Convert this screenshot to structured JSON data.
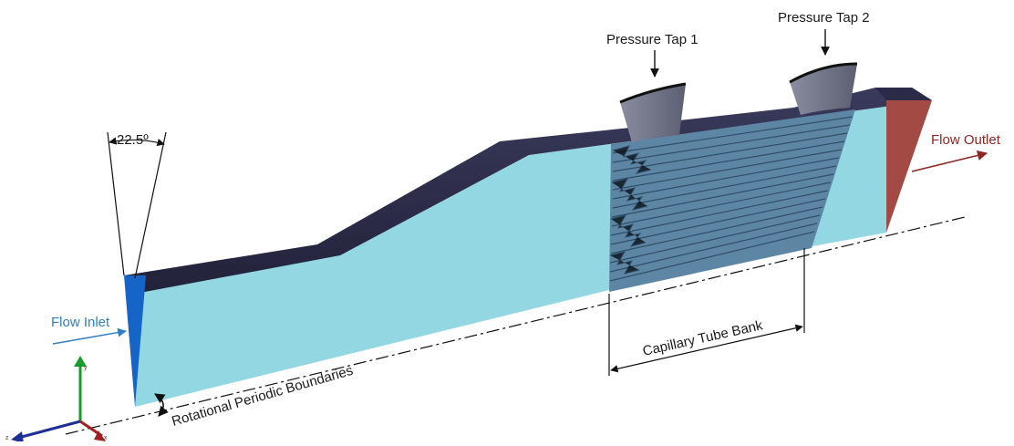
{
  "labels": {
    "angle": "22.5º",
    "pressure_tap_1": "Pressure Tap 1",
    "pressure_tap_2": "Pressure Tap 2",
    "flow_outlet": "Flow Outlet",
    "flow_inlet": "Flow Inlet",
    "rotational_periodic": "Rotational Periodic Boundaries",
    "capillary_tube_bank": "Capillary Tube Bank"
  },
  "axes_triad": {
    "y": "y",
    "z": "z",
    "x": "x"
  },
  "colors": {
    "periodic_face": "#93d7e3",
    "top_surface": "#2b2b47",
    "inlet_face": "#1565c8",
    "outlet_face": "#a34a45",
    "inlet_text": "#2f7fc7",
    "outlet_text": "#8e2622",
    "tap_face": "#6f7186"
  }
}
